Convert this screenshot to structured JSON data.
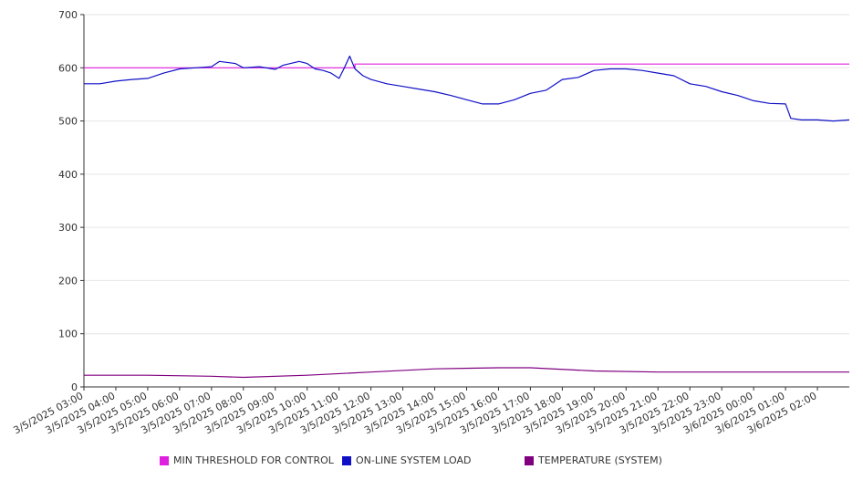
{
  "chart_data": {
    "type": "line",
    "title": "",
    "xlabel": "",
    "ylabel": "",
    "ylim": [
      0,
      700
    ],
    "yticks": [
      "0",
      "100",
      "200",
      "300",
      "400",
      "500",
      "600",
      "700"
    ],
    "grid": true,
    "legend_position": "bottom",
    "x_tick_labels": [
      "3/5/2025 03:00",
      "3/5/2025 04:00",
      "3/5/2025 05:00",
      "3/5/2025 06:00",
      "3/5/2025 07:00",
      "3/5/2025 08:00",
      "3/5/2025 09:00",
      "3/5/2025 10:00",
      "3/5/2025 11:00",
      "3/5/2025 12:00",
      "3/5/2025 13:00",
      "3/5/2025 14:00",
      "3/5/2025 15:00",
      "3/5/2025 16:00",
      "3/5/2025 17:00",
      "3/5/2025 18:00",
      "3/5/2025 19:00",
      "3/5/2025 20:00",
      "3/5/2025 21:00",
      "3/5/2025 22:00",
      "3/5/2025 23:00",
      "3/6/2025 00:00",
      "3/6/2025 01:00",
      "3/6/2025 02:00"
    ],
    "x_range": [
      "3/5/2025 03:00",
      "3/6/2025 03:00"
    ],
    "series": [
      {
        "name": "MIN THRESHOLD FOR CONTROL",
        "color": "#e020e0",
        "x": [
          "3/5/2025 03:00",
          "3/5/2025 11:30",
          "3/5/2025 11:30",
          "3/6/2025 03:00"
        ],
        "values": [
          600,
          600,
          607,
          607
        ]
      },
      {
        "name": "ON-LINE SYSTEM LOAD",
        "color": "#1010c8",
        "x": [
          "3/5/2025 03:00",
          "3/5/2025 03:30",
          "3/5/2025 04:00",
          "3/5/2025 04:30",
          "3/5/2025 05:00",
          "3/5/2025 05:30",
          "3/5/2025 06:00",
          "3/5/2025 06:30",
          "3/5/2025 07:00",
          "3/5/2025 07:15",
          "3/5/2025 07:45",
          "3/5/2025 08:00",
          "3/5/2025 08:30",
          "3/5/2025 09:00",
          "3/5/2025 09:15",
          "3/5/2025 09:45",
          "3/5/2025 10:00",
          "3/5/2025 10:15",
          "3/5/2025 10:30",
          "3/5/2025 10:45",
          "3/5/2025 11:00",
          "3/5/2025 11:10",
          "3/5/2025 11:20",
          "3/5/2025 11:30",
          "3/5/2025 11:45",
          "3/5/2025 12:00",
          "3/5/2025 12:30",
          "3/5/2025 13:00",
          "3/5/2025 13:30",
          "3/5/2025 14:00",
          "3/5/2025 14:30",
          "3/5/2025 15:00",
          "3/5/2025 15:30",
          "3/5/2025 16:00",
          "3/5/2025 16:30",
          "3/5/2025 17:00",
          "3/5/2025 17:30",
          "3/5/2025 18:00",
          "3/5/2025 18:30",
          "3/5/2025 19:00",
          "3/5/2025 19:30",
          "3/5/2025 20:00",
          "3/5/2025 20:30",
          "3/5/2025 21:00",
          "3/5/2025 21:30",
          "3/5/2025 22:00",
          "3/5/2025 22:30",
          "3/5/2025 23:00",
          "3/5/2025 23:30",
          "3/6/2025 00:00",
          "3/6/2025 00:30",
          "3/6/2025 01:00",
          "3/6/2025 01:10",
          "3/6/2025 01:30",
          "3/6/2025 02:00",
          "3/6/2025 02:30",
          "3/6/2025 03:00"
        ],
        "values": [
          570,
          570,
          575,
          578,
          580,
          590,
          598,
          600,
          602,
          612,
          608,
          600,
          602,
          597,
          605,
          612,
          608,
          598,
          595,
          590,
          580,
          600,
          622,
          598,
          585,
          578,
          570,
          565,
          560,
          555,
          548,
          540,
          532,
          532,
          540,
          552,
          558,
          578,
          582,
          595,
          598,
          598,
          595,
          590,
          585,
          570,
          565,
          555,
          548,
          538,
          533,
          532,
          505,
          502,
          502,
          500,
          502
        ]
      },
      {
        "name": "TEMPERATURE (SYSTEM)",
        "color": "#800080",
        "x": [
          "3/5/2025 03:00",
          "3/5/2025 05:00",
          "3/5/2025 07:00",
          "3/5/2025 08:00",
          "3/5/2025 10:00",
          "3/5/2025 12:00",
          "3/5/2025 14:00",
          "3/5/2025 16:00",
          "3/5/2025 17:00",
          "3/5/2025 19:00",
          "3/5/2025 21:00",
          "3/5/2025 23:00",
          "3/6/2025 01:00",
          "3/6/2025 03:00"
        ],
        "values": [
          22,
          22,
          20,
          18,
          22,
          28,
          34,
          36,
          36,
          30,
          28,
          28,
          28,
          28
        ]
      }
    ]
  }
}
